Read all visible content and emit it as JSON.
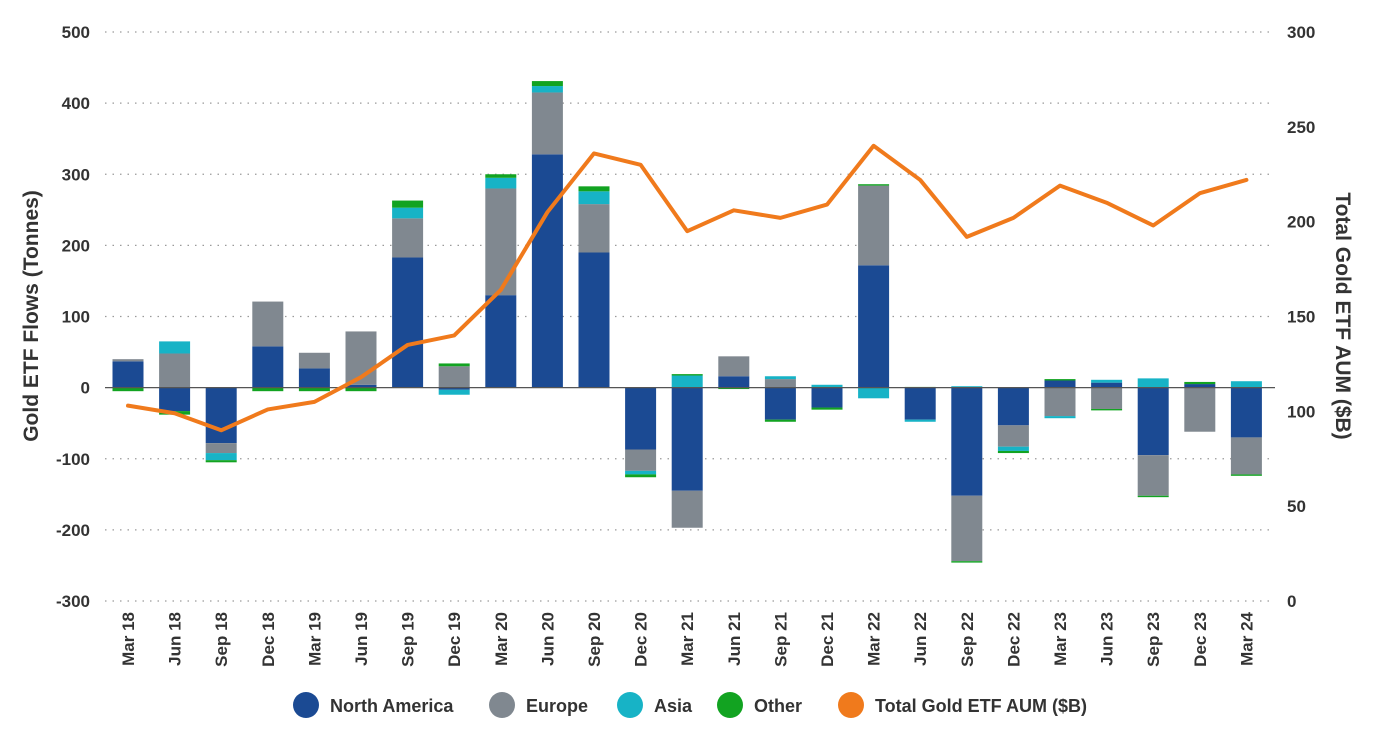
{
  "chart_data": {
    "type": "bar",
    "subtype": "stacked-bar-with-line",
    "title": "",
    "ylabel": "Gold ETF Flows (Tonnes)",
    "ylabel_right": "Total Gold ETF AUM ($B)",
    "ylim": [
      -300,
      500
    ],
    "ylim_right": [
      0,
      300
    ],
    "yticks": [
      "500",
      "400",
      "300",
      "200",
      "100",
      "0",
      "-100",
      "-200",
      "-300"
    ],
    "yticks_right": [
      "300",
      "250",
      "200",
      "150",
      "100",
      "50",
      "0"
    ],
    "grid": "horizontal-dotted",
    "legend_position": "bottom",
    "categories": [
      "Mar 18",
      "Jun 18",
      "Sep 18",
      "Dec 18",
      "Mar 19",
      "Jun 19",
      "Sep 19",
      "Dec 19",
      "Mar 20",
      "Jun 20",
      "Sep 20",
      "Dec 20",
      "Mar 21",
      "Jun 21",
      "Sep 21",
      "Dec 21",
      "Mar 22",
      "Jun 22",
      "Sep 22",
      "Dec 22",
      "Mar 23",
      "Jun 23",
      "Sep 23",
      "Dec 23",
      "Mar 24"
    ],
    "series": [
      {
        "name": "North America",
        "color": "#1b4a93",
        "axis": "left",
        "values": [
          37,
          -33,
          -78,
          58,
          27,
          4,
          183,
          -3,
          130,
          328,
          190,
          -87,
          -145,
          16,
          -45,
          -28,
          172,
          -45,
          -152,
          -53,
          10,
          7,
          -95,
          5,
          -70
        ]
      },
      {
        "name": "Europe",
        "color": "#808890",
        "axis": "left",
        "values": [
          3,
          48,
          -14,
          63,
          22,
          75,
          55,
          30,
          150,
          87,
          68,
          -30,
          -52,
          28,
          12,
          0,
          112,
          0,
          -92,
          -30,
          -40,
          -30,
          -57,
          -62,
          -52
        ]
      },
      {
        "name": "Asia",
        "color": "#17b3c6",
        "axis": "left",
        "values": [
          0,
          17,
          -10,
          0,
          0,
          0,
          15,
          -7,
          15,
          9,
          18,
          -5,
          17,
          0,
          4,
          4,
          -15,
          -3,
          2,
          -6,
          -3,
          4,
          13,
          0,
          9
        ]
      },
      {
        "name": "Other",
        "color": "#12a321",
        "axis": "left",
        "values": [
          -5,
          -5,
          -3,
          -5,
          -5,
          -5,
          10,
          4,
          5,
          7,
          7,
          -4,
          2,
          -2,
          -3,
          -3,
          2,
          1,
          -2,
          -3,
          2,
          -2,
          -2,
          3,
          -2
        ]
      },
      {
        "name": "Total Gold ETF AUM ($B)",
        "color": "#f07a1c",
        "type": "line",
        "axis": "right",
        "values": [
          103,
          99,
          90,
          101,
          105,
          118,
          135,
          140,
          164,
          205,
          236,
          230,
          195,
          206,
          202,
          209,
          240,
          222,
          192,
          202,
          219,
          210,
          198,
          215,
          222
        ]
      }
    ]
  }
}
